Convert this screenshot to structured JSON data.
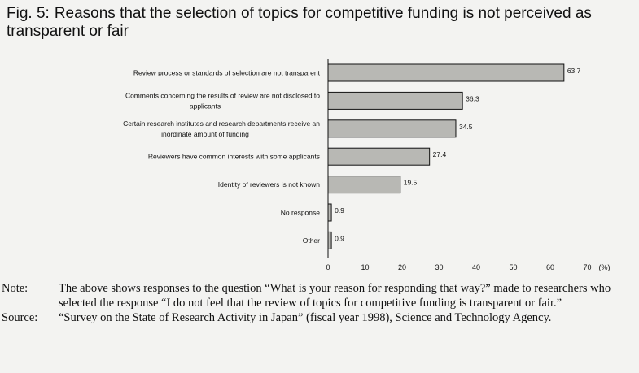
{
  "figure": {
    "label": "Fig. 5:",
    "title": "Reasons that the selection of topics for competitive funding is not perceived as transparent or fair"
  },
  "chart_data": {
    "type": "bar",
    "orientation": "horizontal",
    "categories": [
      [
        "Review process or standards of selection are not transparent"
      ],
      [
        "Comments concerning the results of review are not disclosed to",
        "applicants"
      ],
      [
        "Certain research institutes and research departments receive an",
        "inordinate amount of funding"
      ],
      [
        "Reviewers have common interests with some applicants"
      ],
      [
        "Identity of reviewers is not known"
      ],
      [
        "No response"
      ],
      [
        "Other"
      ]
    ],
    "values": [
      63.7,
      36.3,
      34.5,
      27.4,
      19.5,
      0.9,
      0.9
    ],
    "value_labels": [
      "63.7",
      "36.3",
      "34.5",
      "27.4",
      "19.5",
      "0.9",
      "0.9"
    ],
    "xlim": [
      0,
      70
    ],
    "xticks": [
      0,
      10,
      20,
      30,
      40,
      50,
      60,
      70
    ],
    "xunit": "(%)",
    "bar_color": "#b8b8b4",
    "grid": false
  },
  "notes": [
    {
      "head": "Note:",
      "text": "The above shows responses to the question “What is your reason for responding that way?” made to researchers who selected the response “I do not feel that the review of topics for competitive funding is transparent or fair.”"
    },
    {
      "head": "Source:",
      "text": "“Survey on the State of Research Activity in Japan” (fiscal year 1998), Science and Technology Agency."
    }
  ]
}
